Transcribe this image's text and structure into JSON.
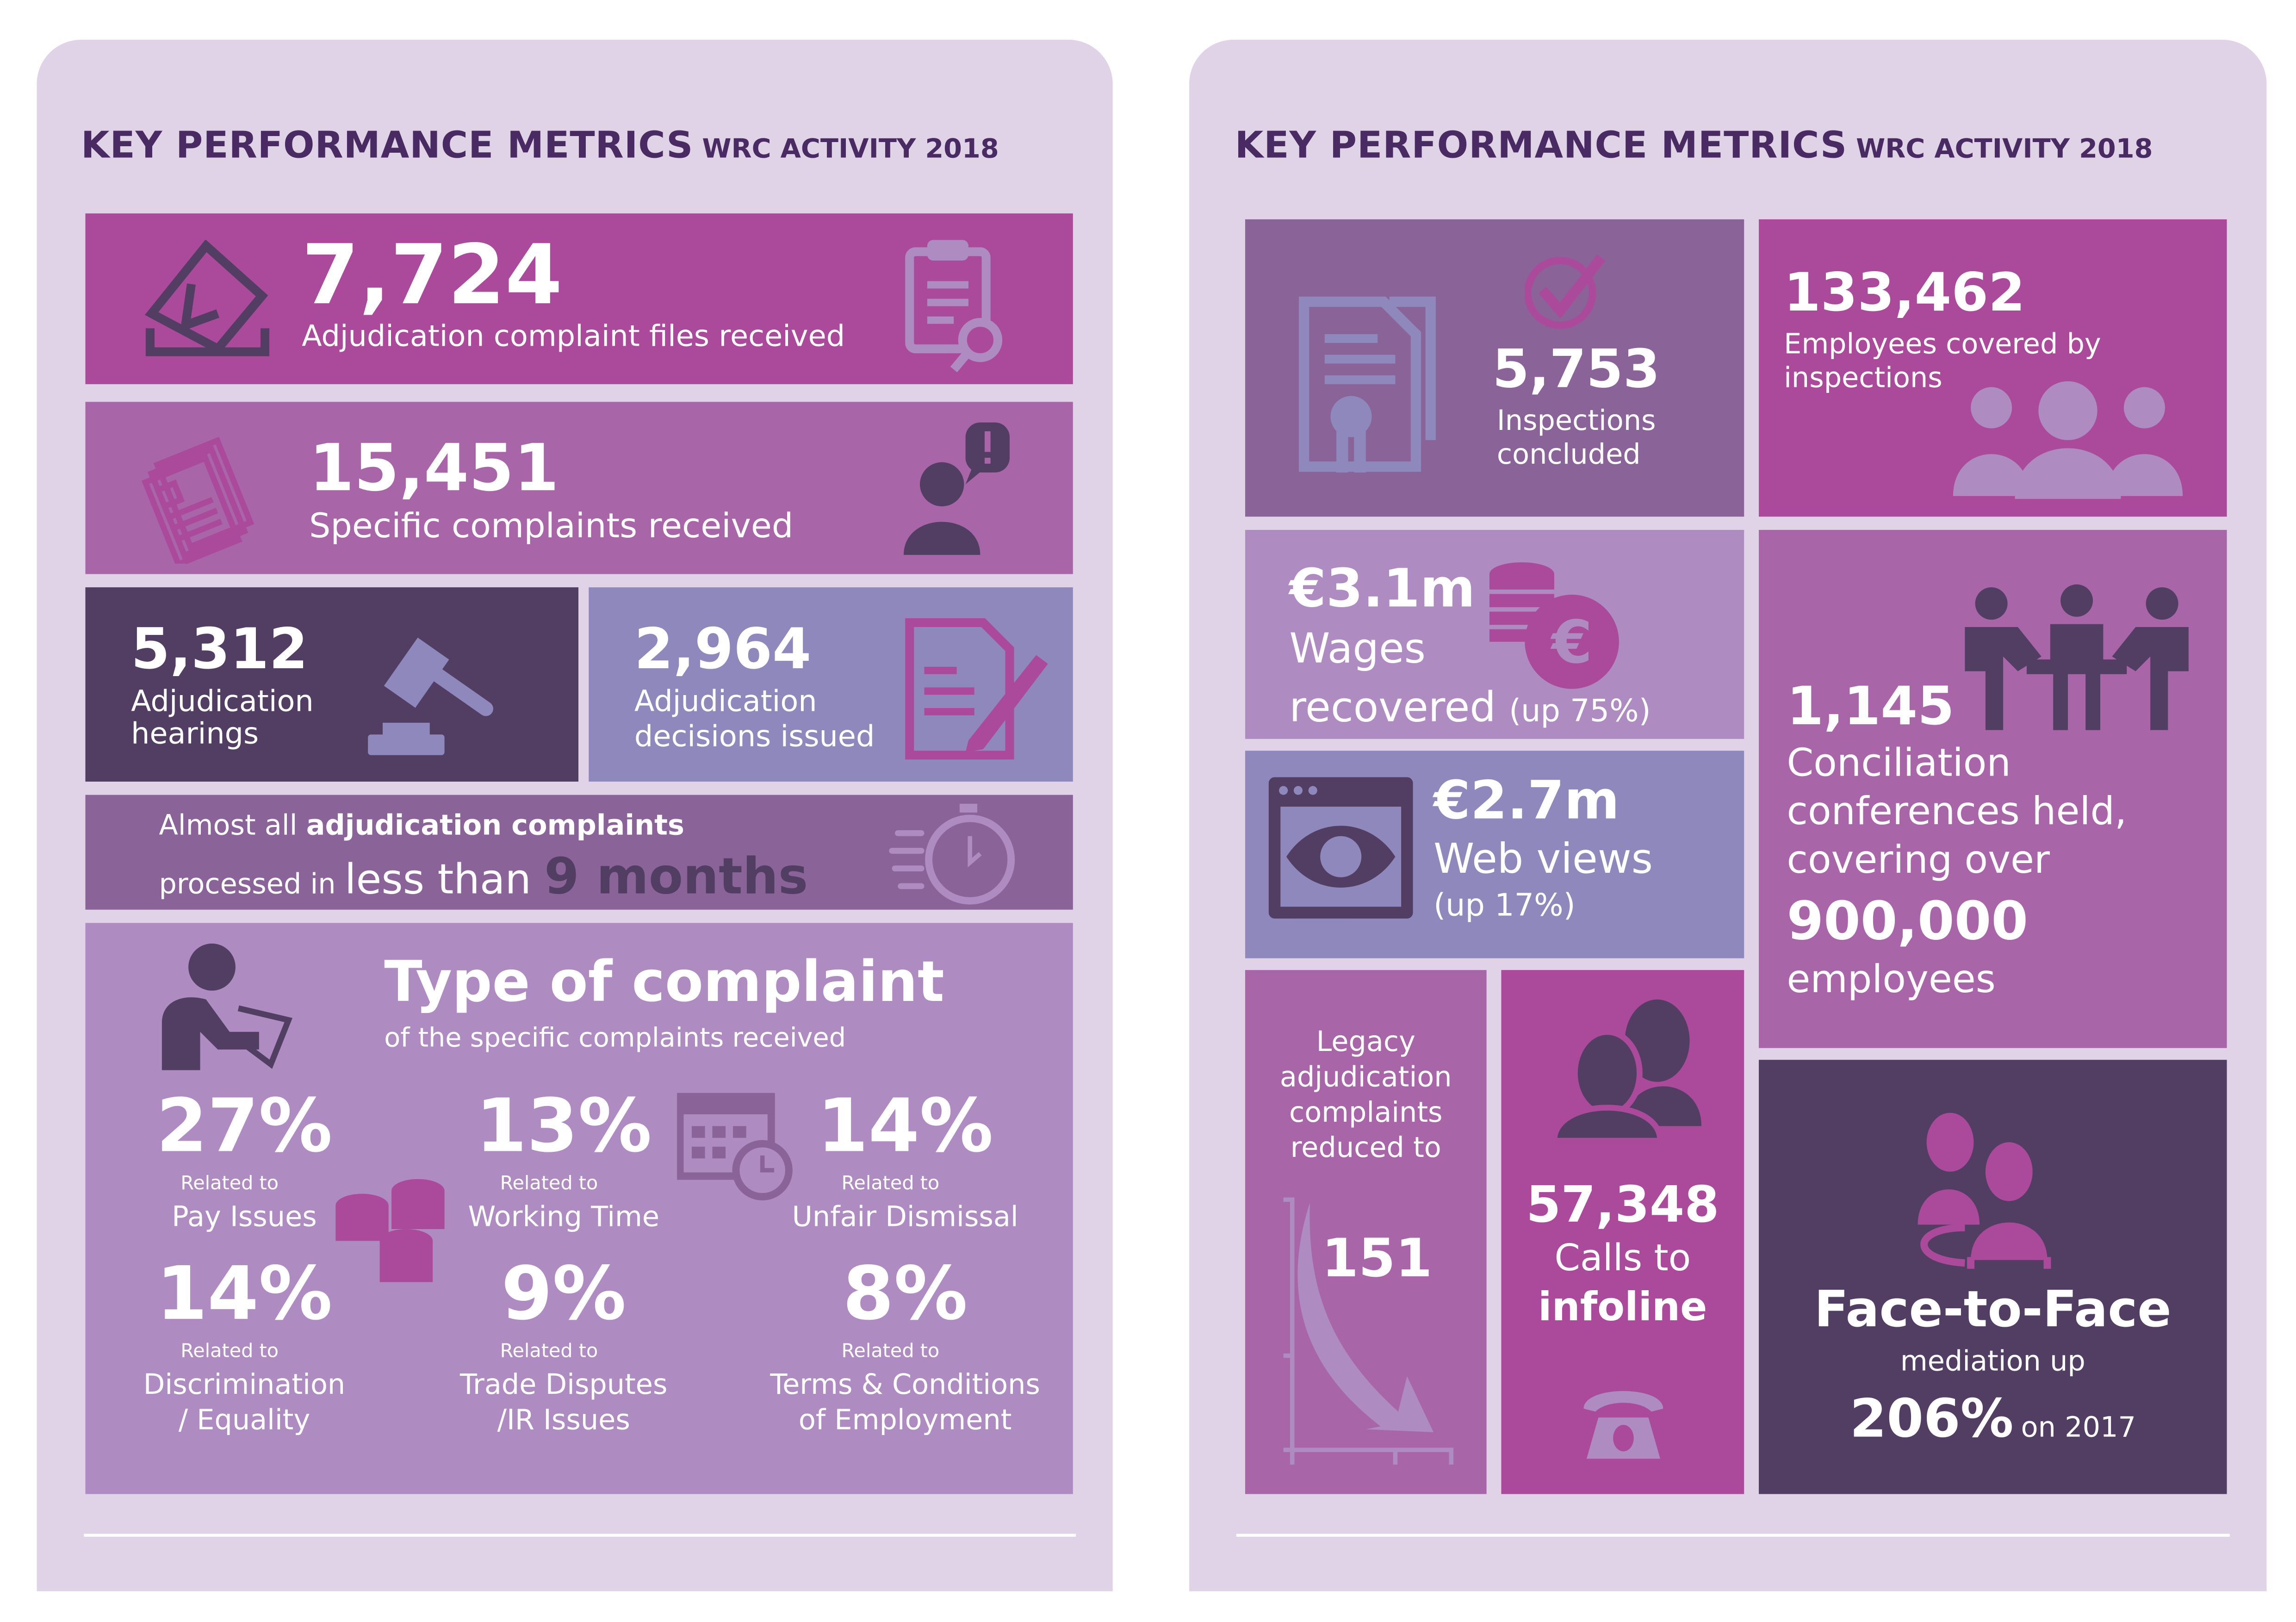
{
  "header": {
    "title_main": "KEY PERFORMANCE METRICS",
    "title_sub": "WRC ACTIVITY 2018"
  },
  "left": {
    "files": {
      "value": "7,724",
      "label": "Adjudication complaint files received"
    },
    "specific": {
      "value": "15,451",
      "label": "Specific complaints received"
    },
    "hearings": {
      "value": "5,312",
      "label_1": "Adjudication",
      "label_2": "hearings"
    },
    "decisions": {
      "value": "2,964",
      "label_1": "Adjudication",
      "label_2": "decisions issued"
    },
    "processing": {
      "line1_a": "Almost all ",
      "line1_b": "adjudication complaints",
      "line2_a": "processed in ",
      "line2_b": "less than ",
      "line2_c": "9 months"
    },
    "types": {
      "title": "Type of complaint",
      "subtitle": "of the specific complaints received",
      "related": "Related to",
      "items": [
        {
          "pct": "27%",
          "cat1": "Pay Issues",
          "cat2": ""
        },
        {
          "pct": "13%",
          "cat1": "Working Time",
          "cat2": ""
        },
        {
          "pct": "14%",
          "cat1": "Unfair Dismissal",
          "cat2": ""
        },
        {
          "pct": "14%",
          "cat1": "Discrimination",
          "cat2": "/ Equality"
        },
        {
          "pct": "9%",
          "cat1": "Trade Disputes",
          "cat2": "/IR Issues"
        },
        {
          "pct": "8%",
          "cat1": "Terms & Conditions",
          "cat2": "of Employment"
        }
      ]
    }
  },
  "right": {
    "inspections": {
      "value": "5,753",
      "label_1": "Inspections",
      "label_2": "concluded"
    },
    "employees": {
      "value": "133,462",
      "label_1": "Employees covered by",
      "label_2": "inspections"
    },
    "wages": {
      "value": "€3.1m",
      "label_1": "Wages",
      "label_2": "recovered",
      "change": "(up 75%)"
    },
    "conciliation": {
      "value": "1,145",
      "l1": "Conciliation",
      "l2": "conferences held,",
      "l3": "covering over",
      "big": "900,000",
      "l4": "employees"
    },
    "web": {
      "value": "€2.7m",
      "label": "Web views",
      "change": "(up 17%)"
    },
    "legacy": {
      "l1": "Legacy",
      "l2": "adjudication",
      "l3": "complaints",
      "l4": "reduced to",
      "value": "151"
    },
    "calls": {
      "value": "57,348",
      "l1": "Calls to",
      "l2": "infoline"
    },
    "mediation": {
      "title": "Face-to-Face",
      "l1": "mediation up",
      "value": "206%",
      "suffix": "on 2017"
    }
  },
  "colors": {
    "magenta": "#ab4a9a",
    "orchid": "#a866a9",
    "plum": "#523d63",
    "periwinkle": "#8e88bc",
    "mauve": "#8a6399",
    "lilac": "#ae8bc1",
    "panel": "#e1d3e7",
    "title": "#4a2a63"
  }
}
